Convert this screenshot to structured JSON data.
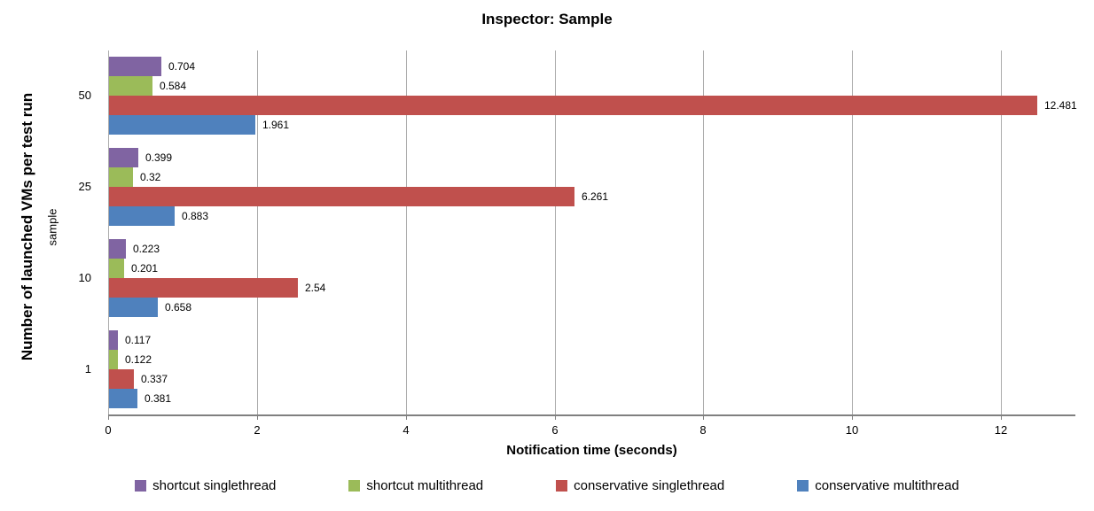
{
  "chart_data": {
    "type": "bar",
    "orientation": "horizontal",
    "title": "Inspector: Sample",
    "xlabel": "Notification time (seconds)",
    "ylabel": "Number of launched VMs per test run",
    "ylabel_secondary": "sample",
    "categories": [
      "50",
      "25",
      "10",
      "1"
    ],
    "series": [
      {
        "name": "shortcut singlethread",
        "color": "#8064A2",
        "values": [
          0.704,
          0.399,
          0.223,
          0.117
        ],
        "labels": [
          "0.704",
          "0.399",
          "0.223",
          "0.117"
        ]
      },
      {
        "name": "shortcut multithread",
        "color": "#9BBB59",
        "values": [
          0.584,
          0.32,
          0.201,
          0.122
        ],
        "labels": [
          "0.584",
          "0.32",
          "0.201",
          "0.122"
        ]
      },
      {
        "name": "conservative singlethread",
        "color": "#C0504D",
        "values": [
          12.481,
          6.261,
          2.54,
          0.337
        ],
        "labels": [
          "12.481",
          "6.261",
          "2.54",
          "0.337"
        ]
      },
      {
        "name": "conservative multithread",
        "color": "#4F81BD",
        "values": [
          1.961,
          0.883,
          0.658,
          0.381
        ],
        "labels": [
          "1.961",
          "0.883",
          "0.658",
          "0.381"
        ]
      }
    ],
    "x_ticks": [
      "0",
      "2",
      "4",
      "6",
      "8",
      "10",
      "12"
    ],
    "x_tick_values": [
      0,
      2,
      4,
      6,
      8,
      10,
      12
    ],
    "xlim": [
      0,
      13
    ],
    "grid": "vertical",
    "legend_position": "bottom",
    "colors": {
      "gridline": "#ABABAB",
      "axis_line": "#808080",
      "text": "#000000",
      "background": "#FFFFFF"
    }
  }
}
